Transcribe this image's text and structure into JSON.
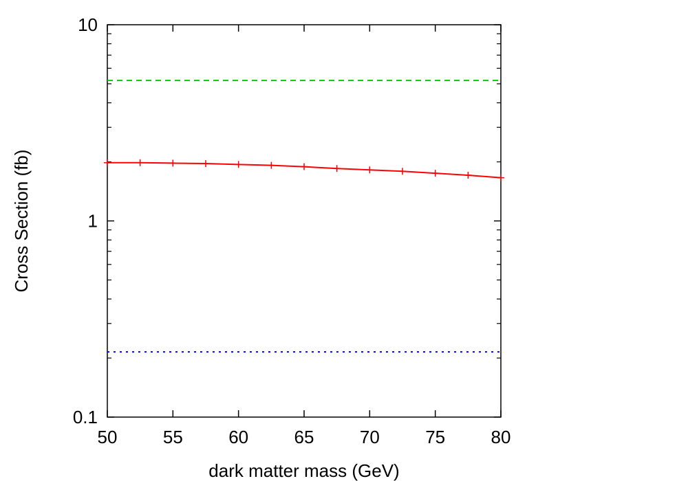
{
  "chart_data": {
    "type": "line",
    "title": "",
    "xlabel": "dark matter mass (GeV)",
    "ylabel": "Cross Section (fb)",
    "xlim": [
      50,
      80
    ],
    "ylim": [
      0.1,
      10
    ],
    "yscale": "log",
    "grid": false,
    "legend": "none",
    "xticks": [
      "50",
      "55",
      "60",
      "65",
      "70",
      "75",
      "80"
    ],
    "yticks": [
      "0.1",
      "1",
      "10"
    ],
    "series": [
      {
        "color": "#ff0000",
        "style": "solid-with-plus-markers",
        "x": [
          50,
          52.5,
          55,
          57.5,
          60,
          62.5,
          65,
          67.5,
          70,
          72.5,
          75,
          77.5,
          80
        ],
        "y": [
          1.98,
          1.98,
          1.97,
          1.96,
          1.94,
          1.92,
          1.89,
          1.85,
          1.82,
          1.79,
          1.75,
          1.71,
          1.66
        ]
      },
      {
        "color": "#00cc00",
        "style": "dashed",
        "x": [
          50,
          80
        ],
        "y": [
          5.2,
          5.2
        ]
      },
      {
        "color": "#0000ff",
        "style": "dotted",
        "x": [
          50,
          80
        ],
        "y": [
          0.215,
          0.215
        ]
      }
    ]
  }
}
